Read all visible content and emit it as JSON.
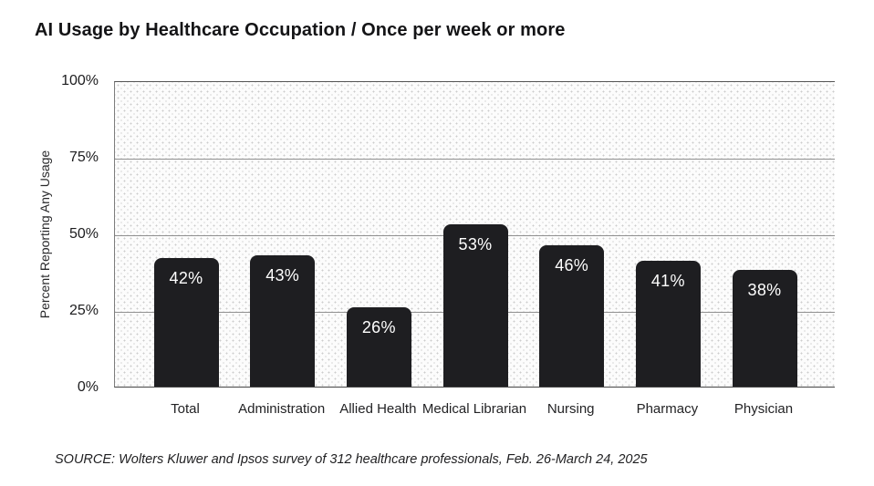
{
  "title": "AI Usage by Healthcare Occupation / Once per week or more",
  "source_note": "SOURCE: Wolters Kluwer and Ipsos survey of 312 healthcare professionals, Feb. 26-March 24, 2025",
  "colors": {
    "bar_fill": "#1e1e21",
    "bar_label_text": "#ffffff",
    "gridline": "#8f8f8f",
    "axis_border": "#555555",
    "text": "#1a1a1c",
    "plot_background": "#fcfcfc",
    "plot_dot": "#cccccc"
  },
  "chart_data": {
    "type": "bar",
    "title": "AI Usage by Healthcare Occupation / Once per week or more",
    "categories": [
      "Total",
      "Administration",
      "Allied Health",
      "Medical Librarian",
      "Nursing",
      "Pharmacy",
      "Physician"
    ],
    "values": [
      42,
      43,
      26,
      53,
      46,
      41,
      38
    ],
    "value_labels": [
      "42%",
      "43%",
      "26%",
      "53%",
      "46%",
      "41%",
      "38%"
    ],
    "xlabel": "",
    "ylabel": "Percent Reporting Any Usage",
    "ylim": [
      0,
      100
    ],
    "yticks": [
      0,
      25,
      50,
      75,
      100
    ],
    "ytick_labels": [
      "0%",
      "25%",
      "50%",
      "75%",
      "100%"
    ],
    "gridline_ticks": [
      25,
      50,
      75
    ],
    "grid": "horizontal",
    "legend": "none",
    "bar_corner_radius": "rounded-top",
    "plot_pattern": "dotted"
  }
}
